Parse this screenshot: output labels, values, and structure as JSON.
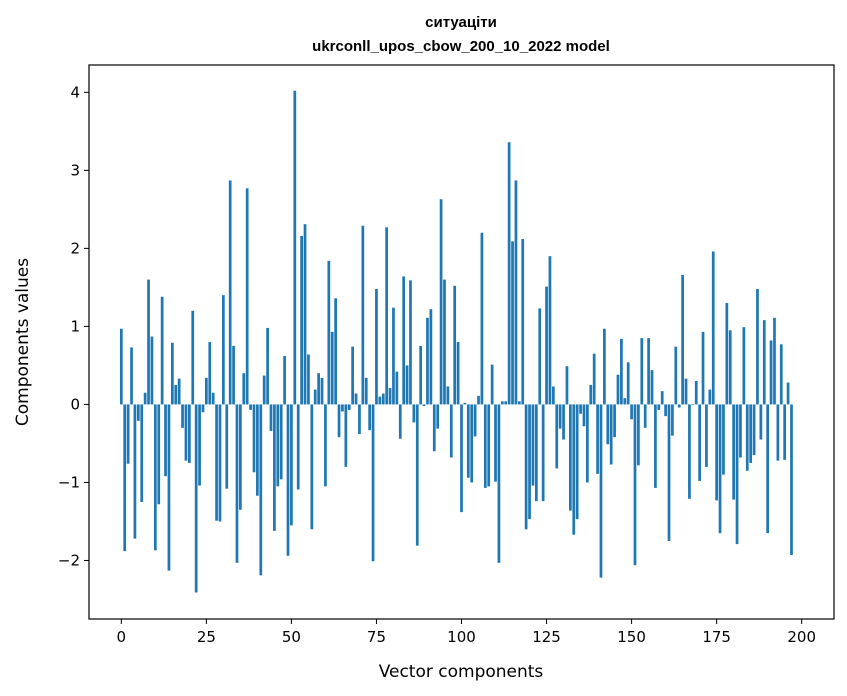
{
  "chart_data": {
    "type": "bar",
    "title": "ситуаціти",
    "subtitle": "ukrconll_upos_cbow_200_10_2022 model",
    "xlabel": "Vector components",
    "ylabel": "Components values",
    "xlim": [
      -9.5,
      209.5
    ],
    "ylim": [
      -2.75,
      4.35
    ],
    "xticks": [
      0,
      25,
      50,
      75,
      100,
      125,
      150,
      175,
      200
    ],
    "yticks": [
      -2,
      -1,
      0,
      1,
      2,
      3,
      4
    ],
    "xtick_labels": [
      "0",
      "25",
      "50",
      "75",
      "100",
      "125",
      "150",
      "175",
      "200"
    ],
    "ytick_labels": [
      "−2",
      "−1",
      "0",
      "1",
      "2",
      "3",
      "4"
    ],
    "grid": false,
    "color": "#1f77b4",
    "values": [
      0.97,
      -1.88,
      -0.76,
      0.73,
      -1.72,
      -0.21,
      -1.25,
      0.15,
      1.6,
      0.87,
      -1.87,
      -1.28,
      1.38,
      -0.92,
      -2.13,
      0.79,
      0.25,
      0.33,
      -0.3,
      -0.72,
      -0.75,
      1.2,
      -2.41,
      -1.04,
      -0.1,
      0.34,
      0.8,
      0.15,
      -1.49,
      -1.5,
      1.4,
      -1.08,
      2.87,
      0.75,
      -2.03,
      -1.35,
      0.4,
      2.77,
      -0.07,
      -0.87,
      -1.17,
      -2.19,
      0.37,
      0.98,
      -0.34,
      -1.62,
      -1.05,
      -0.96,
      0.62,
      -1.94,
      -1.55,
      4.02,
      -1.09,
      2.16,
      2.31,
      0.64,
      -1.6,
      0.19,
      0.4,
      0.34,
      -1.05,
      1.84,
      0.93,
      1.36,
      -0.42,
      -0.09,
      -0.8,
      -0.07,
      0.74,
      0.14,
      -0.38,
      2.29,
      0.34,
      -0.33,
      -2.01,
      1.48,
      0.1,
      0.14,
      2.27,
      0.21,
      1.24,
      0.42,
      -0.44,
      1.64,
      0.5,
      1.59,
      -0.23,
      -1.81,
      0.75,
      -0.02,
      1.11,
      1.22,
      -0.6,
      -0.31,
      2.63,
      1.6,
      0.23,
      -0.68,
      1.52,
      0.8,
      -1.38,
      0.02,
      -0.94,
      -1.0,
      -0.41,
      0.11,
      2.2,
      -1.07,
      -1.05,
      0.51,
      -0.99,
      -2.03,
      0.04,
      0.04,
      3.36,
      2.09,
      2.87,
      0.04,
      2.12,
      -1.6,
      -1.47,
      -1.04,
      -1.24,
      1.23,
      -1.24,
      1.51,
      1.9,
      0.23,
      -0.82,
      -0.31,
      -0.45,
      0.49,
      -1.36,
      -1.67,
      -1.47,
      -0.12,
      -0.28,
      -1.0,
      0.25,
      0.65,
      -0.89,
      -2.22,
      0.97,
      -0.51,
      -0.77,
      -0.42,
      0.38,
      0.84,
      0.08,
      0.54,
      -0.19,
      -2.06,
      -0.78,
      0.85,
      -0.3,
      0.85,
      0.44,
      -1.07,
      -0.07,
      0.17,
      -0.15,
      -1.75,
      -0.4,
      0.74,
      -0.04,
      1.66,
      0.33,
      -1.21,
      0.0,
      0.3,
      -0.98,
      0.93,
      -0.8,
      0.19,
      1.96,
      -1.23,
      -1.65,
      -0.9,
      1.3,
      0.95,
      -1.22,
      -1.79,
      -0.68,
      0.99,
      -0.85,
      -0.75,
      -0.65,
      1.48,
      -0.45,
      1.08,
      -1.65,
      0.82,
      1.11,
      -0.72,
      0.77,
      -0.71,
      0.28,
      -1.93
    ]
  }
}
